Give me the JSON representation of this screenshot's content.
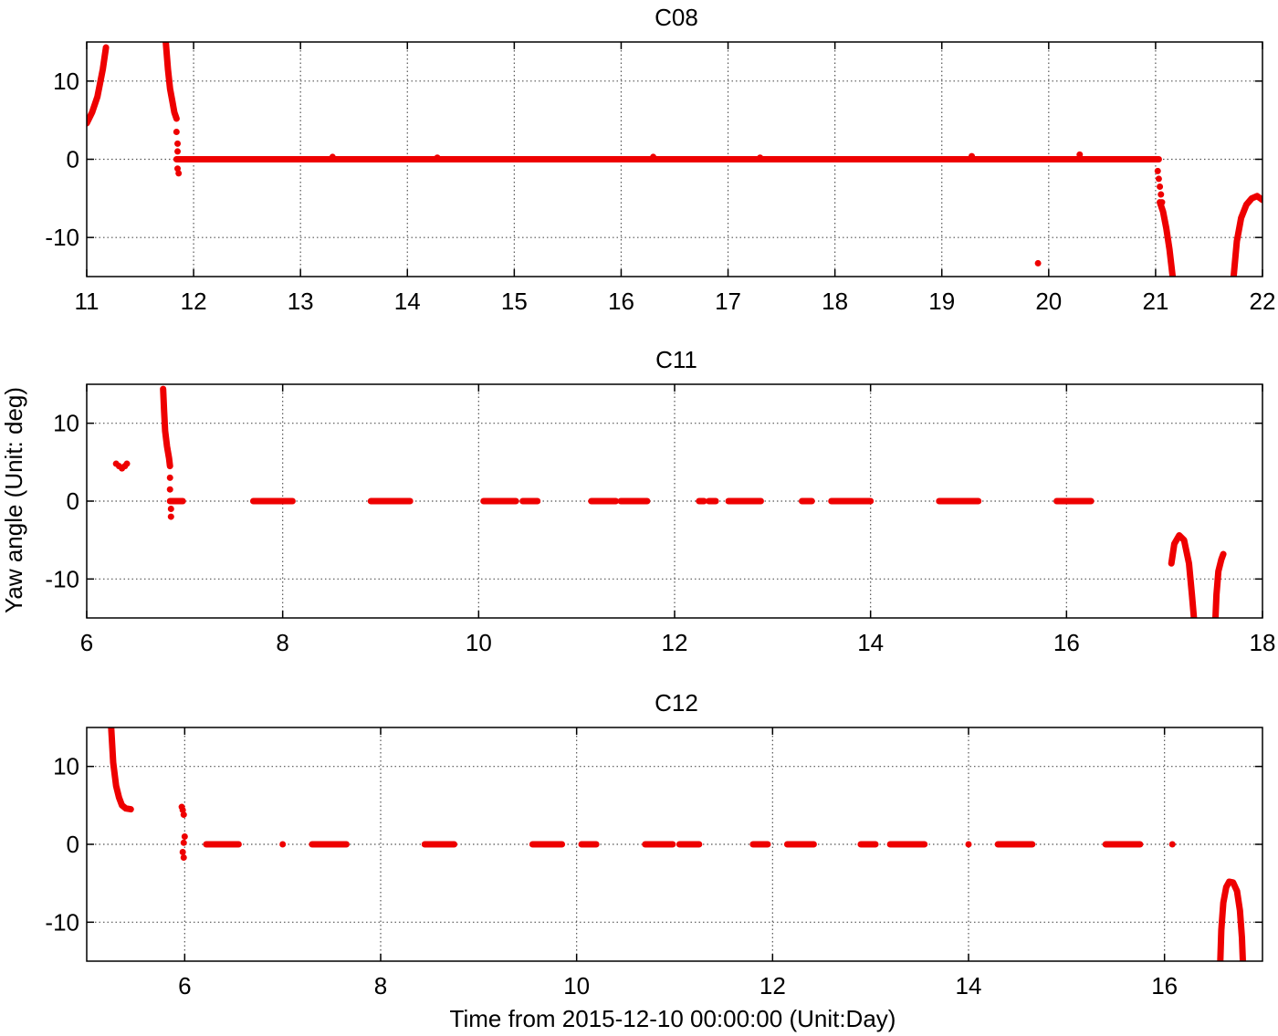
{
  "figure": {
    "ylabel": "Yaw angle (Unit: deg)",
    "xlabel": "Time from 2015-12-10 00:00:00 (Unit:Day)"
  },
  "colors": {
    "marker": "#ee0000",
    "axes": "#000000",
    "grid": "#555555"
  },
  "chart_data": [
    {
      "type": "scatter",
      "title": "C08",
      "xlim": [
        11,
        22
      ],
      "ylim": [
        -15,
        15
      ],
      "xticks": [
        "11",
        "12",
        "13",
        "14",
        "15",
        "16",
        "17",
        "18",
        "19",
        "20",
        "21",
        "22"
      ],
      "yticks": [
        "-10",
        "0",
        "10"
      ],
      "grid": true,
      "series": [
        {
          "kind": "curve",
          "x": [
            11.0,
            11.05,
            11.1,
            11.15,
            11.18
          ],
          "y": [
            4.6,
            6.0,
            8.0,
            11.5,
            14.3
          ]
        },
        {
          "kind": "curve",
          "x": [
            11.74,
            11.76,
            11.78,
            11.8,
            11.82,
            11.84
          ],
          "y": [
            15,
            11.5,
            9.0,
            7.5,
            6.0,
            5.2
          ]
        },
        {
          "kind": "points",
          "x": [
            11.84,
            11.85,
            11.85,
            11.85,
            11.86
          ],
          "y": [
            3.5,
            2.0,
            1.0,
            -1.2,
            -1.8
          ]
        },
        {
          "kind": "segment",
          "x": [
            11.84,
            21.03
          ],
          "y": [
            0,
            0
          ]
        },
        {
          "kind": "points",
          "x": [
            13.3,
            14.28,
            16.3,
            17.3,
            19.28,
            20.29
          ],
          "y": [
            0.3,
            0.2,
            0.3,
            0.2,
            0.4,
            0.6
          ]
        },
        {
          "kind": "points",
          "x": [
            19.9
          ],
          "y": [
            -13.3
          ]
        },
        {
          "kind": "points",
          "x": [
            21.02,
            21.03,
            21.04,
            21.05,
            21.06
          ],
          "y": [
            -1.5,
            -2.5,
            -3.5,
            -4.5,
            -5.5
          ]
        },
        {
          "kind": "curve",
          "x": [
            21.04,
            21.07,
            21.1,
            21.13,
            21.16
          ],
          "y": [
            -5.5,
            -6.7,
            -8.8,
            -11.5,
            -15
          ]
        },
        {
          "kind": "curve",
          "x": [
            21.73,
            21.76,
            21.8,
            21.85,
            21.9,
            21.95,
            22.0
          ],
          "y": [
            -15,
            -10.5,
            -7.5,
            -5.8,
            -5.0,
            -4.7,
            -5.2
          ]
        }
      ]
    },
    {
      "type": "scatter",
      "title": "C11",
      "xlim": [
        6,
        18
      ],
      "ylim": [
        -15,
        15
      ],
      "xticks": [
        "6",
        "8",
        "10",
        "12",
        "14",
        "16",
        "18"
      ],
      "yticks": [
        "-10",
        "0",
        "10"
      ],
      "grid": true,
      "series": [
        {
          "kind": "points",
          "x": [
            6.3,
            6.33,
            6.36,
            6.39,
            6.41
          ],
          "y": [
            4.8,
            4.5,
            4.2,
            4.5,
            4.8
          ]
        },
        {
          "kind": "curve",
          "x": [
            6.78,
            6.79,
            6.8,
            6.82,
            6.84,
            6.85
          ],
          "y": [
            14.4,
            11.5,
            9.0,
            7.0,
            5.5,
            4.5
          ]
        },
        {
          "kind": "points",
          "x": [
            6.85,
            6.85,
            6.86,
            6.86
          ],
          "y": [
            3.0,
            1.5,
            -1.0,
            -2.0
          ]
        },
        {
          "kind": "segment",
          "x": [
            6.85,
            6.98
          ],
          "y": [
            0,
            0
          ]
        },
        {
          "kind": "segment",
          "x": [
            7.7,
            8.1
          ],
          "y": [
            0,
            0
          ]
        },
        {
          "kind": "segment",
          "x": [
            8.9,
            9.3
          ],
          "y": [
            0,
            0
          ]
        },
        {
          "kind": "segment",
          "x": [
            10.05,
            10.38
          ],
          "y": [
            0,
            0
          ]
        },
        {
          "kind": "segment",
          "x": [
            10.45,
            10.6
          ],
          "y": [
            0,
            0
          ]
        },
        {
          "kind": "segment",
          "x": [
            11.15,
            11.4
          ],
          "y": [
            0,
            0
          ]
        },
        {
          "kind": "segment",
          "x": [
            11.45,
            11.72
          ],
          "y": [
            0,
            0
          ]
        },
        {
          "kind": "segment",
          "x": [
            12.25,
            12.3
          ],
          "y": [
            0,
            0
          ]
        },
        {
          "kind": "segment",
          "x": [
            12.35,
            12.42
          ],
          "y": [
            0,
            0
          ]
        },
        {
          "kind": "segment",
          "x": [
            12.55,
            12.88
          ],
          "y": [
            0,
            0
          ]
        },
        {
          "kind": "segment",
          "x": [
            13.3,
            13.4
          ],
          "y": [
            0,
            0
          ]
        },
        {
          "kind": "segment",
          "x": [
            13.6,
            14.0
          ],
          "y": [
            0,
            0
          ]
        },
        {
          "kind": "segment",
          "x": [
            14.7,
            15.1
          ],
          "y": [
            0,
            0
          ]
        },
        {
          "kind": "segment",
          "x": [
            15.9,
            16.25
          ],
          "y": [
            0,
            0
          ]
        },
        {
          "kind": "curve",
          "x": [
            17.07,
            17.1,
            17.15,
            17.2,
            17.25,
            17.28,
            17.3
          ],
          "y": [
            -8.0,
            -5.5,
            -4.4,
            -5.0,
            -8.0,
            -12.0,
            -15
          ]
        },
        {
          "kind": "curve",
          "x": [
            17.52,
            17.53,
            17.55,
            17.58,
            17.6
          ],
          "y": [
            -15,
            -12.0,
            -9.0,
            -7.5,
            -6.8
          ]
        }
      ]
    },
    {
      "type": "scatter",
      "title": "C12",
      "xlim": [
        5,
        17
      ],
      "ylim": [
        -15,
        15
      ],
      "xticks": [
        "6",
        "8",
        "10",
        "12",
        "14",
        "16"
      ],
      "yticks": [
        "-10",
        "0",
        "10"
      ],
      "grid": true,
      "series": [
        {
          "kind": "curve",
          "x": [
            5.25,
            5.27,
            5.3,
            5.33,
            5.36,
            5.4,
            5.45
          ],
          "y": [
            15,
            10.5,
            7.5,
            6.0,
            5.0,
            4.6,
            4.5
          ]
        },
        {
          "kind": "points",
          "x": [
            5.97,
            5.98,
            5.99,
            6.0,
            5.99,
            5.98,
            5.99
          ],
          "y": [
            4.8,
            4.4,
            3.8,
            1.0,
            0.2,
            -1.0,
            -1.7
          ]
        },
        {
          "kind": "segment",
          "x": [
            6.22,
            6.55
          ],
          "y": [
            0,
            0
          ]
        },
        {
          "kind": "points",
          "x": [
            7.0
          ],
          "y": [
            0
          ]
        },
        {
          "kind": "segment",
          "x": [
            7.3,
            7.65
          ],
          "y": [
            0,
            0
          ]
        },
        {
          "kind": "segment",
          "x": [
            8.45,
            8.75
          ],
          "y": [
            0,
            0
          ]
        },
        {
          "kind": "segment",
          "x": [
            9.55,
            9.85
          ],
          "y": [
            0,
            0
          ]
        },
        {
          "kind": "segment",
          "x": [
            10.05,
            10.2
          ],
          "y": [
            0,
            0
          ]
        },
        {
          "kind": "segment",
          "x": [
            10.7,
            10.98
          ],
          "y": [
            0,
            0
          ]
        },
        {
          "kind": "segment",
          "x": [
            11.05,
            11.25
          ],
          "y": [
            0,
            0
          ]
        },
        {
          "kind": "segment",
          "x": [
            11.8,
            11.95
          ],
          "y": [
            0,
            0
          ]
        },
        {
          "kind": "segment",
          "x": [
            12.15,
            12.42
          ],
          "y": [
            0,
            0
          ]
        },
        {
          "kind": "segment",
          "x": [
            12.9,
            13.05
          ],
          "y": [
            0,
            0
          ]
        },
        {
          "kind": "segment",
          "x": [
            13.2,
            13.55
          ],
          "y": [
            0,
            0
          ]
        },
        {
          "kind": "points",
          "x": [
            14.0
          ],
          "y": [
            0
          ]
        },
        {
          "kind": "segment",
          "x": [
            14.3,
            14.65
          ],
          "y": [
            0,
            0
          ]
        },
        {
          "kind": "segment",
          "x": [
            15.4,
            15.75
          ],
          "y": [
            0,
            0
          ]
        },
        {
          "kind": "points",
          "x": [
            16.08
          ],
          "y": [
            0
          ]
        },
        {
          "kind": "curve",
          "x": [
            16.57,
            16.58,
            16.6,
            16.63,
            16.66,
            16.7,
            16.74,
            16.77,
            16.79,
            16.8
          ],
          "y": [
            -15,
            -11.0,
            -7.5,
            -5.5,
            -4.8,
            -4.9,
            -6.0,
            -8.5,
            -12.0,
            -15
          ]
        }
      ]
    }
  ]
}
